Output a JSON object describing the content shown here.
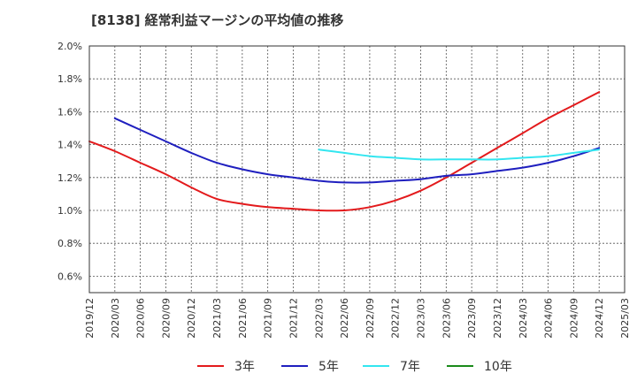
{
  "chart_data": {
    "type": "line",
    "title": "[8138]  経常利益マージンの平均値の推移",
    "xlabel": "",
    "ylabel": "",
    "ylim": [
      0.5,
      2.0
    ],
    "ytick_values": [
      0.6,
      0.8,
      1.0,
      1.2,
      1.4,
      1.6,
      1.8,
      2.0
    ],
    "ytick_labels": [
      "0.6%",
      "0.8%",
      "1.0%",
      "1.2%",
      "1.4%",
      "1.6%",
      "1.8%",
      "2.0%"
    ],
    "x_labels": [
      "2019/12",
      "2020/03",
      "2020/06",
      "2020/09",
      "2020/12",
      "2021/03",
      "2021/06",
      "2021/09",
      "2021/12",
      "2022/03",
      "2022/06",
      "2022/09",
      "2022/12",
      "2023/03",
      "2023/06",
      "2023/09",
      "2023/12",
      "2024/03",
      "2024/06",
      "2024/09",
      "2024/12",
      "2025/03"
    ],
    "grid": true,
    "legend_position": "bottom",
    "series": [
      {
        "name": "3年",
        "color": "#e31a1c",
        "values": [
          1.42,
          1.36,
          1.29,
          1.22,
          1.14,
          1.07,
          1.04,
          1.02,
          1.01,
          1.0,
          1.0,
          1.02,
          1.06,
          1.12,
          1.2,
          1.29,
          1.38,
          1.47,
          1.56,
          1.64,
          1.72,
          null
        ]
      },
      {
        "name": "5年",
        "color": "#1f1fbf",
        "values": [
          null,
          1.56,
          1.49,
          1.42,
          1.35,
          1.29,
          1.25,
          1.22,
          1.2,
          1.18,
          1.17,
          1.17,
          1.18,
          1.19,
          1.21,
          1.22,
          1.24,
          1.26,
          1.29,
          1.33,
          1.38,
          null
        ]
      },
      {
        "name": "7年",
        "color": "#33e6f0",
        "values": [
          null,
          null,
          null,
          null,
          null,
          null,
          null,
          null,
          null,
          1.37,
          1.35,
          1.33,
          1.32,
          1.31,
          1.31,
          1.31,
          1.31,
          1.32,
          1.33,
          1.35,
          1.37,
          null
        ]
      },
      {
        "name": "10年",
        "color": "#1a8a1a",
        "values": [
          null,
          null,
          null,
          null,
          null,
          null,
          null,
          null,
          null,
          null,
          null,
          null,
          null,
          null,
          null,
          null,
          null,
          null,
          null,
          null,
          null,
          null
        ]
      }
    ]
  }
}
